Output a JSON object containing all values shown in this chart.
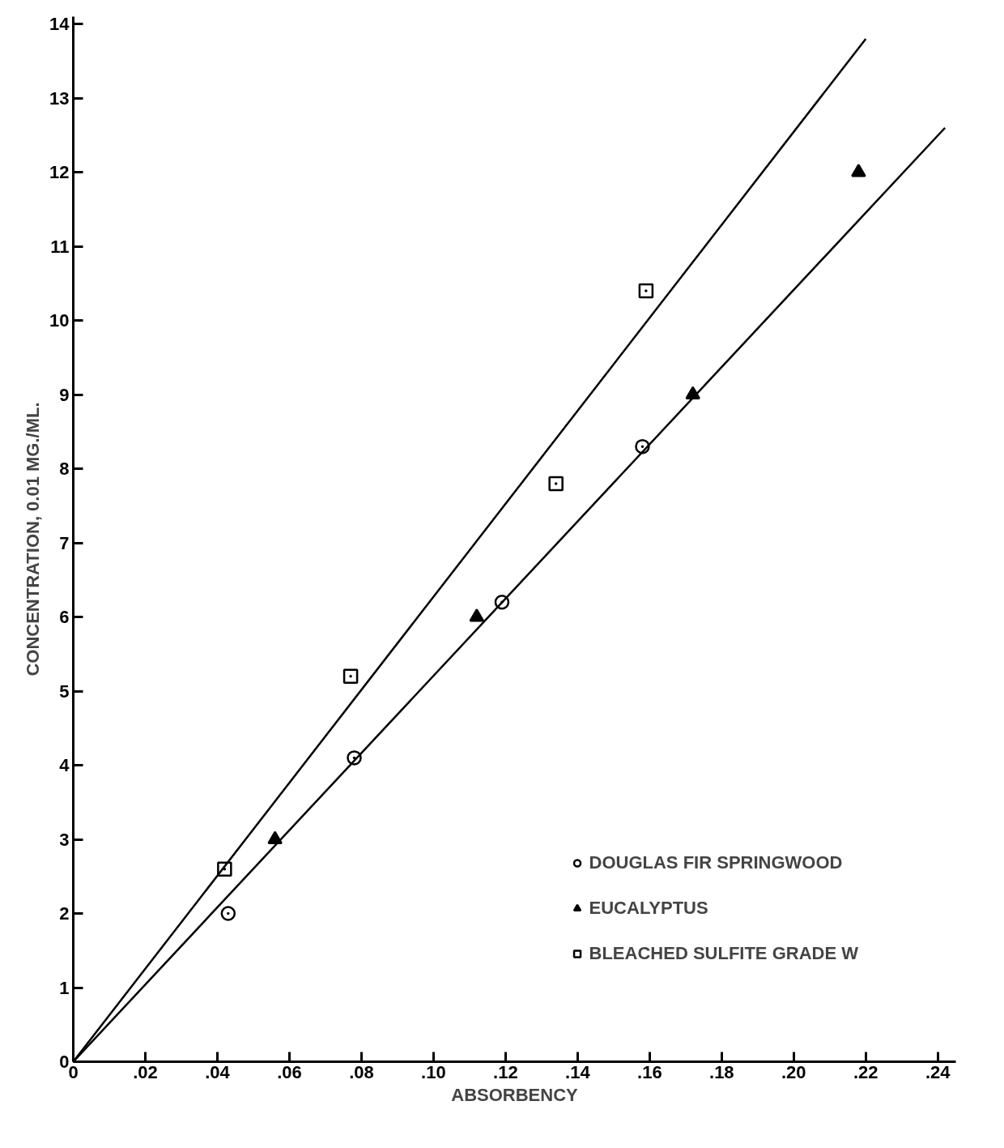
{
  "chart_data": {
    "type": "scatter",
    "xlabel": "ABSORBENCY",
    "ylabel": "CONCENTRATION, 0.01 MG./ML.",
    "xlim": [
      0,
      0.245
    ],
    "ylim": [
      0,
      14.1
    ],
    "xticks": [
      {
        "value": 0,
        "label": "0"
      },
      {
        "value": 0.02,
        "label": ".02"
      },
      {
        "value": 0.04,
        "label": ".04"
      },
      {
        "value": 0.06,
        "label": ".06"
      },
      {
        "value": 0.08,
        "label": ".08"
      },
      {
        "value": 0.1,
        "label": ".10"
      },
      {
        "value": 0.12,
        "label": ".12"
      },
      {
        "value": 0.14,
        "label": ".14"
      },
      {
        "value": 0.16,
        "label": ".16"
      },
      {
        "value": 0.18,
        "label": ".18"
      },
      {
        "value": 0.2,
        "label": ".20"
      },
      {
        "value": 0.22,
        "label": ".22"
      },
      {
        "value": 0.24,
        "label": ".24"
      }
    ],
    "yticks": [
      0,
      1,
      2,
      3,
      4,
      5,
      6,
      7,
      8,
      9,
      10,
      11,
      12,
      13,
      14
    ],
    "grid": false,
    "legend": "bottom right",
    "series": [
      {
        "name": "DOUGLAS FIR SPRINGWOOD",
        "color": "#000000",
        "marker": "circle",
        "x": [
          0.043,
          0.078,
          0.119,
          0.158
        ],
        "values": [
          2.0,
          4.1,
          6.2,
          8.3
        ]
      },
      {
        "name": "EUCALYPTUS",
        "color": "#000000",
        "marker": "triangle",
        "x": [
          0.056,
          0.112,
          0.172,
          0.218
        ],
        "values": [
          3.0,
          6.0,
          9.0,
          12.0
        ]
      },
      {
        "name": "BLEACHED SULFITE GRADE W",
        "color": "#000000",
        "marker": "square",
        "x": [
          0.042,
          0.077,
          0.134,
          0.159
        ],
        "values": [
          2.6,
          5.2,
          7.8,
          10.4
        ]
      },
      {
        "type": "line",
        "color": "#000000",
        "x": [
          0,
          0.22
        ],
        "values": [
          0,
          13.8
        ]
      },
      {
        "type": "line",
        "color": "#000000",
        "x": [
          0,
          0.242
        ],
        "values": [
          0,
          12.6
        ]
      }
    ]
  }
}
